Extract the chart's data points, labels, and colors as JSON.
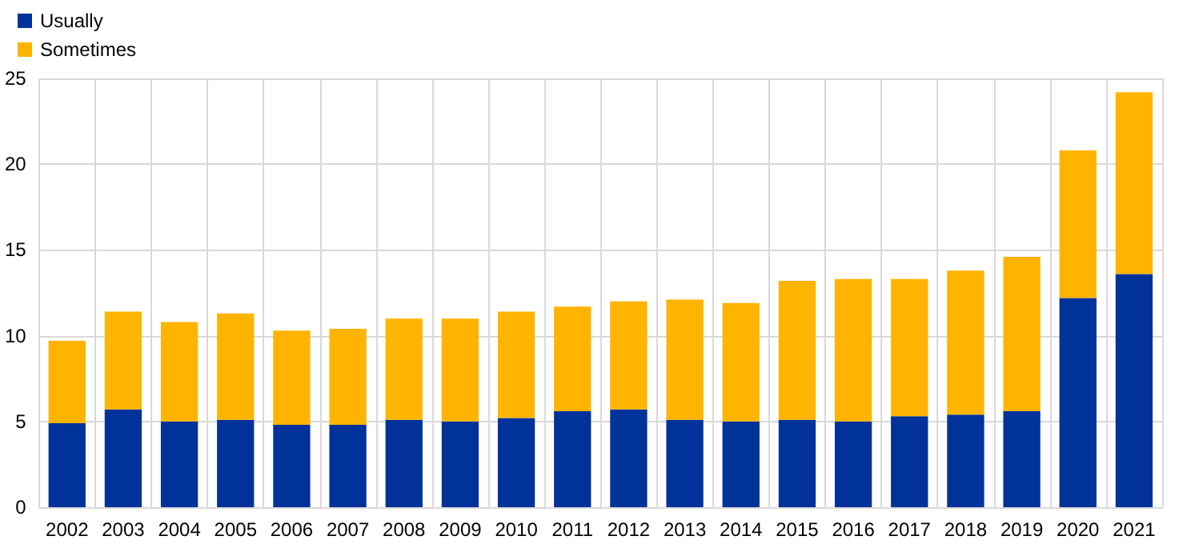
{
  "chart_data": {
    "type": "bar",
    "stacked": true,
    "categories": [
      "2002",
      "2003",
      "2004",
      "2005",
      "2006",
      "2007",
      "2008",
      "2009",
      "2010",
      "2011",
      "2012",
      "2013",
      "2014",
      "2015",
      "2016",
      "2017",
      "2018",
      "2019",
      "2020",
      "2021"
    ],
    "series": [
      {
        "name": "Usually",
        "color": "#003299",
        "values": [
          4.9,
          5.7,
          5.0,
          5.1,
          4.8,
          4.8,
          5.1,
          5.0,
          5.2,
          5.6,
          5.7,
          5.1,
          5.0,
          5.1,
          5.0,
          5.3,
          5.4,
          5.6,
          12.2,
          13.6
        ]
      },
      {
        "name": "Sometimes",
        "color": "#ffb400",
        "values": [
          4.8,
          5.7,
          5.8,
          6.2,
          5.5,
          5.6,
          5.9,
          6.0,
          6.2,
          6.1,
          6.3,
          7.0,
          6.9,
          8.1,
          8.3,
          8.0,
          8.4,
          9.0,
          8.6,
          10.6
        ]
      }
    ],
    "ylim": [
      0,
      25
    ],
    "yticks": [
      0,
      5,
      10,
      15,
      20,
      25
    ],
    "grid": true,
    "legend": "top left"
  }
}
